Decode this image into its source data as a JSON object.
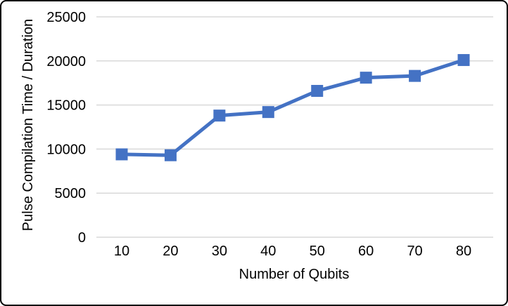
{
  "chart_data": {
    "type": "line",
    "title": "",
    "xlabel": "Number of Qubits",
    "ylabel": "Pulse Compilation Time / Duration",
    "x": [
      10,
      20,
      30,
      40,
      50,
      60,
      70,
      80
    ],
    "values": [
      9400,
      9300,
      13800,
      14200,
      16600,
      18100,
      18300,
      20100
    ],
    "xlim": [
      10,
      80
    ],
    "ylim": [
      0,
      25000
    ],
    "yticks": [
      0,
      5000,
      10000,
      15000,
      20000,
      25000
    ],
    "xticks": [
      10,
      20,
      30,
      40,
      50,
      60,
      70,
      80
    ],
    "grid": "horizontal-only",
    "legend": "none",
    "marker": "square",
    "colors": {
      "series_line": "#4472C4",
      "series_marker": "#4472C4",
      "gridline": "#D9D9D9",
      "tick_text": "#000000",
      "axis_title_text": "#000000",
      "frame_border": "#000000",
      "background": "#ffffff"
    }
  }
}
